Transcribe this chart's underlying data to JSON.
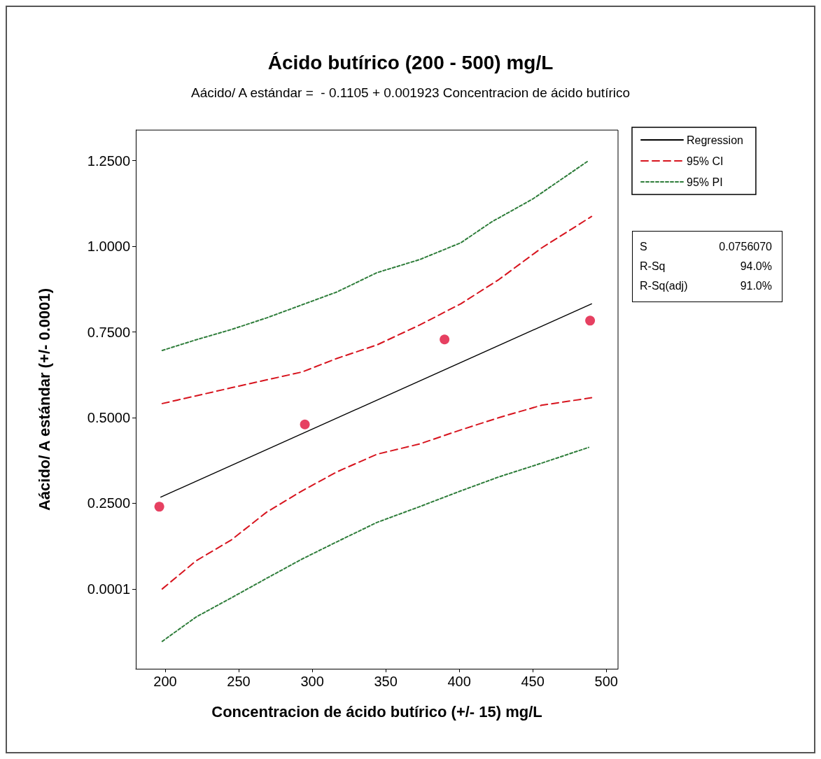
{
  "chart_data": {
    "type": "line",
    "title": "Ácido butírico (200 - 500) mg/L",
    "subtitle": "Aácido/ A estándar =  - 0.1105 + 0.001923 Concentracion de ácido butírico",
    "xlabel": "Concentracion de ácido butírico (+/- 15) mg/L",
    "ylabel": "Aácido/ A estándar (+/- 0.0001)",
    "xlim": [
      180,
      508
    ],
    "xticks": [
      200,
      250,
      300,
      350,
      400,
      450,
      500
    ],
    "ylim": [
      -0.233,
      1.339
    ],
    "yticks": [
      0.0001,
      {
        "value": 0.25,
        "label": "0.2500"
      },
      {
        "value": 0.5,
        "label": "0.5000"
      },
      {
        "value": 0.75,
        "label": "0.7500"
      },
      {
        "value": 1,
        "label": "1.0000"
      },
      {
        "value": 1.25,
        "label": "1.2500"
      }
    ],
    "grid": false,
    "legend": "top right",
    "marker": "none",
    "annotations": [
      "S",
      "0.0756070",
      "R-Sq",
      "94.0%",
      "R-Sq(adj)",
      "91.0%"
    ],
    "series": [
      {
        "name": "Regression",
        "color": "#000000",
        "line_style": "solid",
        "x": [
          197,
          490
        ],
        "values": [
          0.268,
          0.832
        ]
      },
      {
        "name": "95% CI",
        "color": "#d7141e",
        "line_style": "dashed",
        "x": [
          198,
          245,
          293,
          317,
          344,
          373,
          401,
          427,
          456,
          490
        ],
        "values": [
          0.541,
          0.587,
          0.633,
          0.673,
          0.712,
          0.77,
          0.832,
          0.903,
          0.995,
          1.087
        ]
      },
      {
        "color": "#d7141e",
        "line_style": "dashed",
        "x": [
          198,
          221,
          245,
          269,
          293,
          317,
          344,
          373,
          401,
          427,
          456,
          490
        ],
        "values": [
          0.0,
          0.082,
          0.143,
          0.224,
          0.286,
          0.342,
          0.393,
          0.423,
          0.464,
          0.5,
          0.536,
          0.558
        ]
      },
      {
        "name": "95% PI",
        "color": "#2e7d3a",
        "line_style": "dotted",
        "x": [
          198,
          221,
          245,
          269,
          293,
          317,
          344,
          373,
          401,
          422,
          450,
          488
        ],
        "values": [
          0.696,
          0.727,
          0.757,
          0.791,
          0.829,
          0.867,
          0.923,
          0.961,
          1.01,
          1.071,
          1.138,
          1.25
        ]
      },
      {
        "color": "#2e7d3a",
        "line_style": "dotted",
        "x": [
          198,
          221,
          245,
          269,
          293,
          317,
          344,
          373,
          401,
          427,
          456,
          488
        ],
        "values": [
          -0.153,
          -0.082,
          -0.026,
          0.031,
          0.087,
          0.138,
          0.194,
          0.24,
          0.286,
          0.327,
          0.367,
          0.413
        ]
      },
      {
        "type": "scatter",
        "color": "#e0103a",
        "marker": "circle",
        "x": [
          196,
          295,
          390,
          489
        ],
        "values": [
          0.24,
          0.48,
          0.728,
          0.783
        ]
      }
    ]
  }
}
